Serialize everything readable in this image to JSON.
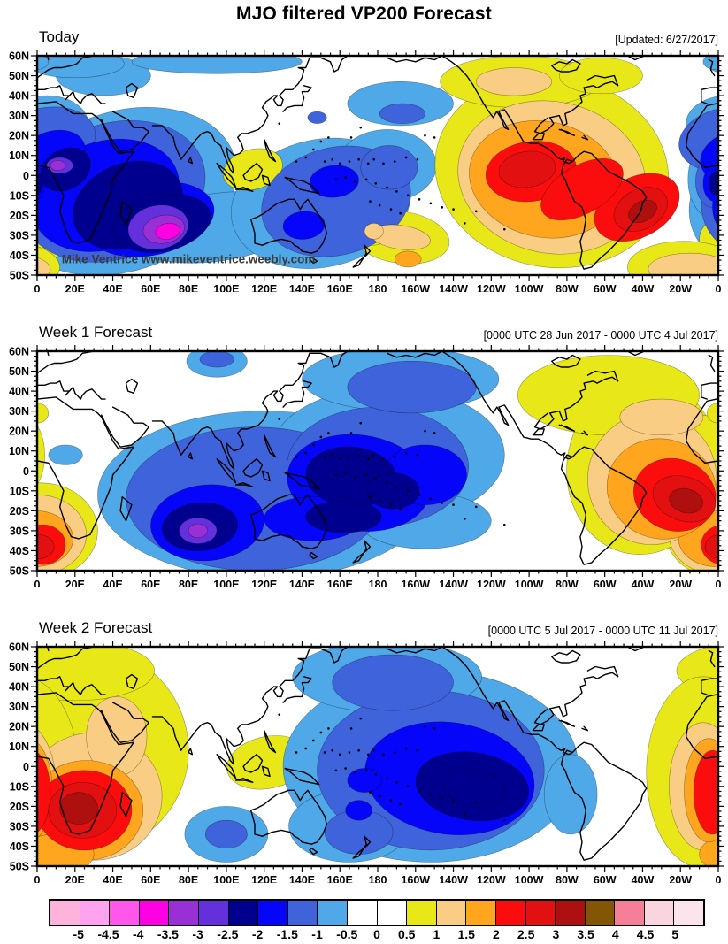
{
  "title": "MJO filtered VP200 Forecast",
  "watermark": "Mike Ventrice www.mikeventrice.weebly.com",
  "panels": [
    {
      "label": "Today",
      "info": "[Updated: 6/27/2017]"
    },
    {
      "label": "Week 1 Forecast",
      "info": "[0000 UTC 28 Jun 2017 - 0000 UTC 4 Jul 2017]"
    },
    {
      "label": "Week 2 Forecast",
      "info": "[0000 UTC 5 Jul 2017 - 0000 UTC 11 Jul 2017]"
    }
  ],
  "axis": {
    "lat_labels": [
      "60N",
      "50N",
      "40N",
      "30N",
      "20N",
      "10N",
      "0",
      "10S",
      "20S",
      "30S",
      "40S",
      "50S"
    ],
    "lon_labels": [
      "0",
      "20E",
      "40E",
      "60E",
      "80E",
      "100E",
      "120E",
      "140E",
      "160E",
      "180",
      "160W",
      "140W",
      "120W",
      "100W",
      "80W",
      "60W",
      "40W",
      "20W",
      "0"
    ]
  },
  "colorbar": {
    "labels": [
      "-5",
      "-4.5",
      "-4",
      "-3.5",
      "-3",
      "-2.5",
      "-2",
      "-1.5",
      "-1",
      "-0.5",
      "0",
      "0.5",
      "1",
      "1.5",
      "2",
      "2.5",
      "3",
      "3.5",
      "4",
      "4.5",
      "5"
    ],
    "colors": [
      "#FFB3DA",
      "#FFA3F0",
      "#FF57EC",
      "#FF00E4",
      "#9A2FD6",
      "#6330DC",
      "#00008F",
      "#0505FA",
      "#3F63DB",
      "#4FA8E8",
      "#FFFFFF",
      "#FFFFFF",
      "#E8E818",
      "#FACD84",
      "#FFA51E",
      "#FB0D0D",
      "#E21010",
      "#AE1010",
      "#825605",
      "#F57E98",
      "#FAD4DE",
      "#FBE4EC"
    ]
  },
  "chart_data": [
    {
      "panel": "Today",
      "type": "filled_contour_map",
      "lon_range": [
        0,
        360
      ],
      "lat_range": [
        -50,
        60
      ],
      "contour_interval": 0.5,
      "centers": [
        {
          "lon": 69,
          "lat": -28,
          "value": -3.9
        },
        {
          "lon": 12,
          "lat": 5,
          "value": -3.2
        },
        {
          "lon": 141,
          "lat": -25,
          "value": -1.8
        },
        {
          "lon": 157,
          "lat": -3,
          "value": -1.8
        },
        {
          "lon": 259,
          "lat": 3,
          "value": 2.8
        },
        {
          "lon": 320,
          "lat": -18,
          "value": 3.2
        },
        {
          "lon": 192,
          "lat": -31,
          "value": 1.4
        },
        {
          "lon": 114,
          "lat": 3,
          "value": 0.8
        }
      ],
      "contours": [
        [
          45,
          -8,
          62,
          40,
          -18,
          -0.5
        ],
        [
          5,
          26,
          22,
          14,
          0,
          -0.5
        ],
        [
          35,
          50,
          25,
          10,
          0,
          -0.5
        ],
        [
          20,
          56,
          26,
          7,
          0,
          -0.5
        ],
        [
          95,
          57,
          45,
          6,
          0,
          -0.5
        ],
        [
          95,
          -26,
          46,
          17,
          -8,
          -0.5
        ],
        [
          150,
          -14,
          48,
          32,
          -12,
          -0.5
        ],
        [
          185,
          5,
          26,
          18,
          0,
          -0.5
        ],
        [
          192,
          36,
          28,
          11,
          0,
          -0.5
        ],
        [
          358,
          -2,
          14,
          20,
          0,
          -0.5
        ],
        [
          359,
          57,
          7,
          4,
          0,
          -0.5
        ],
        [
          40,
          -8,
          50,
          34,
          -18,
          -1
        ],
        [
          5,
          18,
          26,
          16,
          -10,
          -1
        ],
        [
          158,
          -13,
          40,
          27,
          -14,
          -1
        ],
        [
          186,
          4,
          15,
          11,
          0,
          -1
        ],
        [
          193,
          31,
          12,
          5,
          0,
          -1
        ],
        [
          148,
          29,
          5,
          3,
          0,
          -1
        ],
        [
          357,
          -3,
          9,
          13,
          0,
          -1
        ],
        [
          36,
          -10,
          40,
          27,
          -18,
          -1.5
        ],
        [
          60,
          -22,
          34,
          18,
          -12,
          -1.5
        ],
        [
          8,
          10,
          18,
          12,
          -20,
          -1.5
        ],
        [
          157,
          -3,
          13,
          8,
          -5,
          -1.5
        ],
        [
          141,
          -25,
          11,
          7,
          -5,
          -1.5
        ],
        [
          358,
          -4,
          6,
          9,
          0,
          -1.5
        ],
        [
          48,
          -15,
          30,
          21,
          -22,
          -2
        ],
        [
          66,
          -24,
          26,
          14,
          -12,
          -2
        ],
        [
          15,
          3,
          14,
          10,
          -30,
          -2
        ],
        [
          359,
          -4,
          4,
          6,
          0,
          -2
        ],
        [
          64,
          -26,
          16,
          11,
          -10,
          -2.5
        ],
        [
          12,
          5,
          7,
          4,
          0,
          -2.5
        ],
        [
          67,
          -27,
          11,
          7,
          -10,
          -3
        ],
        [
          11,
          5,
          4,
          2.5,
          0,
          -3
        ],
        [
          69,
          -28,
          6.5,
          4,
          -10,
          -3.5
        ],
        [
          272,
          2,
          62,
          48,
          10,
          0.5
        ],
        [
          255,
          47,
          42,
          13,
          0,
          0.5
        ],
        [
          298,
          50,
          22,
          9,
          0,
          0.5
        ],
        [
          192,
          -31,
          26,
          13,
          8,
          0.5
        ],
        [
          114,
          3,
          16,
          10,
          -15,
          0.5
        ],
        [
          3,
          -32,
          13,
          11,
          0,
          0.5
        ],
        [
          178,
          -27,
          8,
          8,
          0,
          0.5
        ],
        [
          342,
          -46,
          30,
          13,
          0,
          0.5
        ],
        [
          272,
          -1,
          50,
          38,
          12,
          1
        ],
        [
          252,
          47,
          20,
          7,
          0,
          1
        ],
        [
          192,
          -31,
          16,
          6,
          8,
          1
        ],
        [
          178,
          -28,
          5,
          4,
          0,
          1
        ],
        [
          345,
          -47,
          22,
          8,
          0,
          1
        ],
        [
          268,
          -2,
          40,
          29,
          12,
          1.5
        ],
        [
          196,
          -42,
          7,
          4,
          0,
          1.5
        ],
        [
          261,
          2,
          24,
          15,
          -8,
          2
        ],
        [
          317,
          -16,
          24,
          15,
          -28,
          2
        ],
        [
          288,
          -7,
          24,
          12,
          -30,
          2
        ],
        [
          259,
          3,
          15,
          9,
          -8,
          2.5
        ],
        [
          319,
          -17,
          15,
          10,
          -28,
          2.5
        ],
        [
          320,
          -18,
          8,
          5,
          -28,
          3
        ]
      ]
    },
    {
      "panel": "Week 1 Forecast",
      "type": "filled_contour_map",
      "lon_range": [
        0,
        360
      ],
      "lat_range": [
        -50,
        60
      ],
      "contour_interval": 0.5,
      "centers": [
        {
          "lon": 85,
          "lat": -30,
          "value": -3.2
        },
        {
          "lon": 166,
          "lat": -3,
          "value": -2.3
        },
        {
          "lon": 188,
          "lat": -10,
          "value": -2.2
        },
        {
          "lon": 343,
          "lat": -15,
          "value": 3.3
        },
        {
          "lon": 3,
          "lat": -37,
          "value": 2.6
        }
      ],
      "contours": [
        [
          120,
          -12,
          88,
          42,
          0,
          -0.5
        ],
        [
          185,
          8,
          62,
          34,
          0,
          -0.5
        ],
        [
          192,
          46,
          52,
          16,
          0,
          -0.5
        ],
        [
          95,
          55,
          16,
          8,
          0,
          -0.5
        ],
        [
          15,
          8,
          9,
          5,
          0,
          -0.5
        ],
        [
          205,
          -25,
          35,
          14,
          0,
          -0.5
        ],
        [
          115,
          -14,
          68,
          36,
          0,
          -1
        ],
        [
          180,
          2,
          48,
          30,
          0,
          -1
        ],
        [
          198,
          42,
          34,
          13,
          0,
          -1
        ],
        [
          95,
          56,
          9,
          4,
          0,
          -1
        ],
        [
          90,
          -26,
          30,
          19,
          -5,
          -1.5
        ],
        [
          170,
          -6,
          38,
          24,
          8,
          -1.5
        ],
        [
          146,
          -24,
          26,
          11,
          0,
          -1.5
        ],
        [
          205,
          -2,
          22,
          15,
          0,
          -1.5
        ],
        [
          86,
          -28,
          20,
          12,
          -5,
          -2
        ],
        [
          166,
          -3,
          24,
          15,
          5,
          -2
        ],
        [
          162,
          -23,
          20,
          8,
          0,
          -2
        ],
        [
          188,
          -10,
          14,
          9,
          0,
          -2
        ],
        [
          85,
          -30,
          10,
          6.5,
          0,
          -2.5
        ],
        [
          85,
          -30,
          5,
          3.5,
          0,
          -3
        ],
        [
          2,
          -30,
          30,
          24,
          0,
          0.5
        ],
        [
          320,
          2,
          40,
          44,
          8,
          0.5
        ],
        [
          352,
          8,
          12,
          20,
          0,
          0.5
        ],
        [
          302,
          38,
          48,
          20,
          0,
          0.5
        ],
        [
          0,
          29,
          6,
          5,
          0,
          0.5
        ],
        [
          0,
          -32,
          26,
          20,
          0,
          1
        ],
        [
          325,
          -4,
          34,
          33,
          12,
          1
        ],
        [
          330,
          27,
          22,
          9,
          0,
          1
        ],
        [
          359,
          -34,
          20,
          14,
          0,
          1.5
        ],
        [
          330,
          -9,
          29,
          25,
          15,
          1.5
        ],
        [
          3,
          -37,
          12,
          10,
          0,
          2
        ],
        [
          337,
          -12,
          22,
          18,
          18,
          2
        ],
        [
          1,
          -38,
          8,
          6,
          0,
          2.5
        ],
        [
          342,
          -14,
          17,
          11,
          18,
          2.5
        ],
        [
          343,
          -15,
          9,
          6,
          15,
          3
        ]
      ]
    },
    {
      "panel": "Week 2 Forecast",
      "type": "filled_contour_map",
      "lon_range": [
        0,
        360
      ],
      "lat_range": [
        -50,
        60
      ],
      "contour_interval": 0.5,
      "centers": [
        {
          "lon": 231,
          "lat": -11,
          "value": -2.4
        },
        {
          "lon": 100,
          "lat": -34,
          "value": -1.3
        },
        {
          "lon": 22,
          "lat": -21,
          "value": 3.2
        },
        {
          "lon": 357,
          "lat": -13,
          "value": 2.3
        },
        {
          "lon": 122,
          "lat": 2,
          "value": 0.8
        }
      ],
      "contours": [
        [
          25,
          8,
          55,
          52,
          0,
          0.5
        ],
        [
          20,
          48,
          42,
          15,
          0,
          0.5
        ],
        [
          122,
          2,
          22,
          13,
          -12,
          0.5
        ],
        [
          352,
          -3,
          30,
          48,
          0,
          0.5
        ],
        [
          30,
          -15,
          36,
          32,
          0,
          1
        ],
        [
          42,
          15,
          16,
          20,
          0,
          1
        ],
        [
          352,
          -10,
          18,
          32,
          0,
          1
        ],
        [
          26,
          -22,
          30,
          25,
          0,
          1.5
        ],
        [
          10,
          -44,
          20,
          10,
          0,
          1.5
        ],
        [
          355,
          -12,
          13,
          26,
          0,
          1.5
        ],
        [
          25,
          -22,
          25,
          20,
          0,
          2
        ],
        [
          357,
          -13,
          10,
          21,
          0,
          2
        ],
        [
          24,
          -22,
          18,
          14,
          0,
          2.5
        ],
        [
          22,
          -21,
          10,
          8,
          0,
          3
        ],
        [
          208,
          0,
          78,
          48,
          0,
          -0.5
        ],
        [
          185,
          45,
          50,
          18,
          0,
          -0.5
        ],
        [
          282,
          -14,
          14,
          20,
          0,
          -0.5
        ],
        [
          165,
          -30,
          32,
          18,
          0,
          -0.5
        ],
        [
          100,
          -34,
          22,
          14,
          0,
          -0.5
        ],
        [
          208,
          -2,
          60,
          40,
          0,
          -1
        ],
        [
          188,
          42,
          32,
          14,
          0,
          -1
        ],
        [
          100,
          -34,
          11,
          7,
          0,
          -1
        ],
        [
          170,
          -33,
          18,
          11,
          0,
          -1
        ],
        [
          218,
          -6,
          45,
          28,
          8,
          -1.5
        ],
        [
          173,
          -7,
          9,
          6,
          0,
          -1.5
        ],
        [
          170,
          -22,
          7,
          5,
          0,
          -1.5
        ],
        [
          230,
          -10,
          30,
          17,
          8,
          -2
        ],
        [
          231,
          -11,
          16,
          9,
          8,
          -2
        ]
      ]
    }
  ]
}
